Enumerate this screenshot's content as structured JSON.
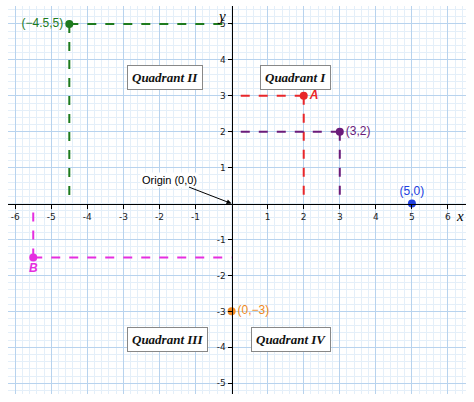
{
  "chart_data": {
    "type": "scatter",
    "x_label": "x",
    "y_label": "y",
    "xlim": [
      -6.2,
      6.5
    ],
    "ylim": [
      -5.3,
      5.5
    ],
    "xticks": [
      -6,
      -5,
      -4,
      -3,
      -2,
      -1,
      1,
      2,
      3,
      4,
      5,
      6
    ],
    "yticks": [
      -5,
      -4,
      -3,
      -2,
      -1,
      1,
      2,
      3,
      4,
      5
    ],
    "grid": true,
    "points": [
      {
        "label": "(−4.5,5)",
        "x": -4.5,
        "y": 5,
        "color": "#1e7b1e"
      },
      {
        "label": "A",
        "x": 2,
        "y": 3,
        "color": "#e8262a"
      },
      {
        "label": "(3,2)",
        "x": 3,
        "y": 2,
        "color": "#6a1b7a"
      },
      {
        "label": "(5,0)",
        "x": 5,
        "y": 0,
        "color": "#2040e0"
      },
      {
        "label": "(0,−3)",
        "x": 0,
        "y": -3,
        "color": "#f08a24"
      },
      {
        "label": "B",
        "x": -5.5,
        "y": -1.5,
        "color": "#e52ee0"
      }
    ],
    "quadrants": [
      "Quadrant I",
      "Quadrant II",
      "Quadrant III",
      "Quadrant IV"
    ],
    "origin": {
      "label": "Origin (0,0)",
      "x": 0,
      "y": 0
    }
  }
}
